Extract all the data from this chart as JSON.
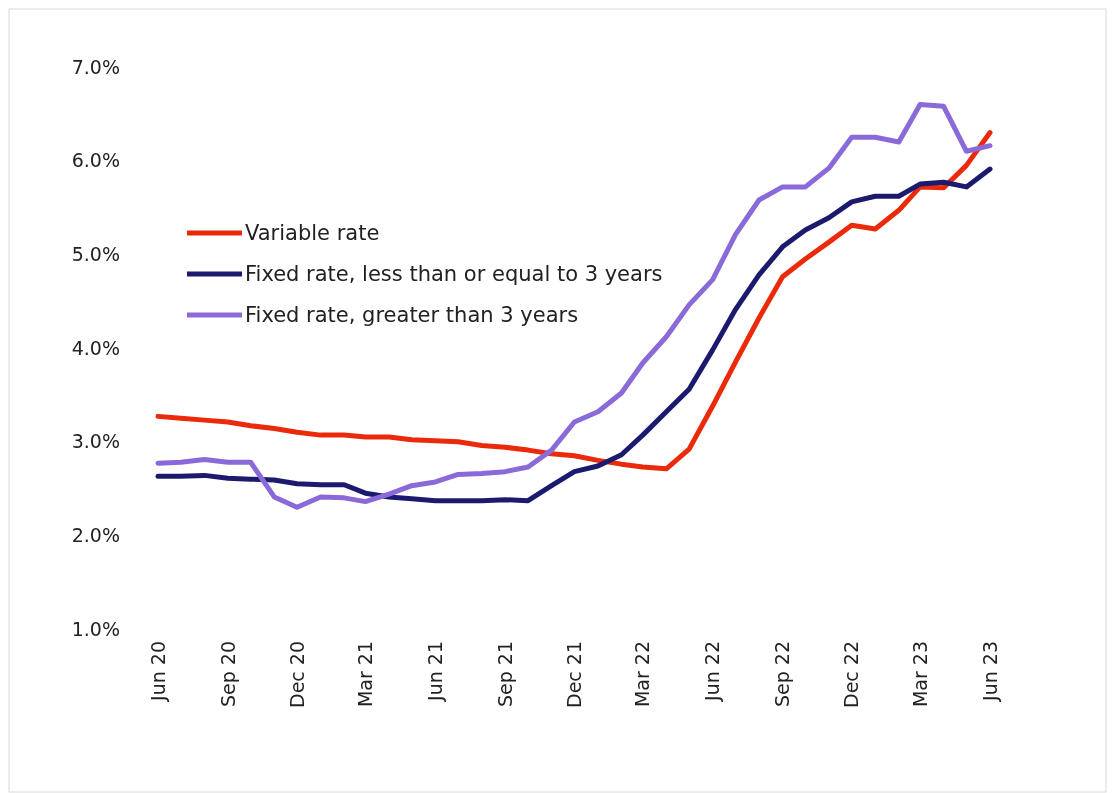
{
  "chart_data": {
    "type": "line",
    "x": [
      "2020-06",
      "2020-07",
      "2020-08",
      "2020-09",
      "2020-10",
      "2020-11",
      "2020-12",
      "2021-01",
      "2021-02",
      "2021-03",
      "2021-04",
      "2021-05",
      "2021-06",
      "2021-07",
      "2021-08",
      "2021-09",
      "2021-10",
      "2021-11",
      "2021-12",
      "2022-01",
      "2022-02",
      "2022-03",
      "2022-04",
      "2022-05",
      "2022-06",
      "2022-07",
      "2022-08",
      "2022-09",
      "2022-10",
      "2022-11",
      "2022-12",
      "2023-01",
      "2023-02",
      "2023-03",
      "2023-04",
      "2023-05",
      "2023-06"
    ],
    "series": [
      {
        "name": "Variable rate",
        "color": "#ea2a0a",
        "values": [
          3.27,
          3.25,
          3.23,
          3.21,
          3.17,
          3.14,
          3.1,
          3.07,
          3.07,
          3.05,
          3.05,
          3.02,
          3.01,
          3.0,
          2.96,
          2.94,
          2.91,
          2.87,
          2.85,
          2.8,
          2.76,
          2.73,
          2.71,
          2.92,
          3.38,
          3.85,
          4.32,
          4.76,
          4.95,
          5.13,
          5.31,
          5.27,
          5.47,
          5.72,
          5.71,
          5.95,
          6.3
        ]
      },
      {
        "name": "Fixed rate, less than or equal to 3 years",
        "color": "#1c1a6e",
        "values": [
          2.63,
          2.63,
          2.64,
          2.61,
          2.6,
          2.59,
          2.55,
          2.54,
          2.54,
          2.45,
          2.41,
          2.39,
          2.37,
          2.37,
          2.37,
          2.38,
          2.37,
          2.53,
          2.68,
          2.74,
          2.86,
          3.07,
          3.32,
          3.56,
          3.98,
          4.41,
          4.78,
          5.08,
          5.26,
          5.39,
          5.56,
          5.62,
          5.62,
          5.75,
          5.77,
          5.72,
          5.91
        ]
      },
      {
        "name": "Fixed rate, greater than 3 years",
        "color": "#8a6ad8",
        "values": [
          2.77,
          2.78,
          2.81,
          2.78,
          2.78,
          2.41,
          2.3,
          2.41,
          2.4,
          2.36,
          2.44,
          2.53,
          2.57,
          2.65,
          2.66,
          2.68,
          2.73,
          2.91,
          3.21,
          3.32,
          3.52,
          3.84,
          4.12,
          4.46,
          4.73,
          5.21,
          5.58,
          5.72,
          5.72,
          5.92,
          6.25,
          6.25,
          6.2,
          6.6,
          6.58,
          6.1,
          6.16
        ]
      }
    ],
    "xlim": [
      "2020-06",
      "2023-06"
    ],
    "xticks": [
      {
        "value": "2020-06",
        "label": "Jun 20"
      },
      {
        "value": "2020-09",
        "label": "Sep 20"
      },
      {
        "value": "2020-12",
        "label": "Dec 20"
      },
      {
        "value": "2021-03",
        "label": "Mar 21"
      },
      {
        "value": "2021-06",
        "label": "Jun 21"
      },
      {
        "value": "2021-09",
        "label": "Sep 21"
      },
      {
        "value": "2021-12",
        "label": "Dec 21"
      },
      {
        "value": "2022-03",
        "label": "Mar 22"
      },
      {
        "value": "2022-06",
        "label": "Jun 22"
      },
      {
        "value": "2022-09",
        "label": "Sep 22"
      },
      {
        "value": "2022-12",
        "label": "Dec 22"
      },
      {
        "value": "2023-03",
        "label": "Mar 23"
      },
      {
        "value": "2023-06",
        "label": "Jun 23"
      }
    ],
    "ylim": [
      1,
      7
    ],
    "yticks": [
      {
        "value": 1,
        "label": "1.0%"
      },
      {
        "value": 2,
        "label": "2.0%"
      },
      {
        "value": 3,
        "label": "3.0%"
      },
      {
        "value": 4,
        "label": "4.0%"
      },
      {
        "value": 5,
        "label": "5.0%"
      },
      {
        "value": 6,
        "label": "6.0%"
      },
      {
        "value": 7,
        "label": "7.0%"
      }
    ],
    "legend": "top left",
    "grid": false,
    "line_style": "solid",
    "marker": "none"
  }
}
